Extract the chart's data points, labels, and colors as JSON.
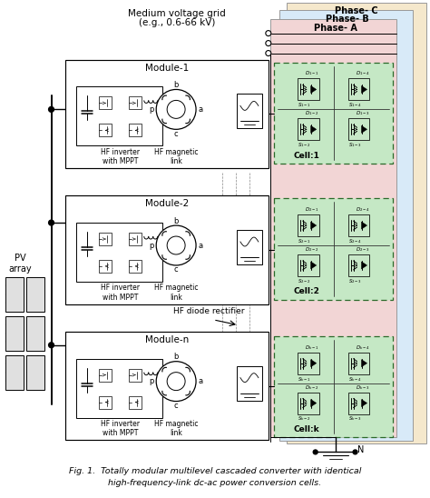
{
  "title": "Fig. 1.  Totally modular multilevel cascaded converter with identical",
  "subtitle": "high-frequency-link dc-ac power conversion cells.",
  "fig_width": 4.74,
  "fig_height": 5.48,
  "dpi": 100,
  "bg_color": "#ffffff",
  "phase_c_color": "#f5e8cc",
  "phase_b_color": "#d8eaf8",
  "phase_a_color": "#f2d5d5",
  "cell_color": "#c5e8c5",
  "cell_border_color": "#2a6a2a",
  "module_box_color": "#ffffff",
  "module_border_color": "#222222",
  "phases": [
    "Phase- C",
    "Phase- B",
    "Phase- A"
  ],
  "modules": [
    "Module-1",
    "Module-2",
    "Module-n"
  ],
  "cells": [
    "Cell:1",
    "Cell:2",
    "Cell:k"
  ],
  "top_label": "Medium voltage grid",
  "top_label2": "(e.g., 0.6-66 kV)",
  "pv_label": "PV\narray",
  "hf_inv_label": "HF inverter\nwith MPPT",
  "hf_mag_label": "HF magnetic\nlink",
  "hf_diode_label": "HF diode rectifier",
  "node_label": "N",
  "lw_main": 0.9,
  "lw_thin": 0.5,
  "lw_thick": 1.3
}
